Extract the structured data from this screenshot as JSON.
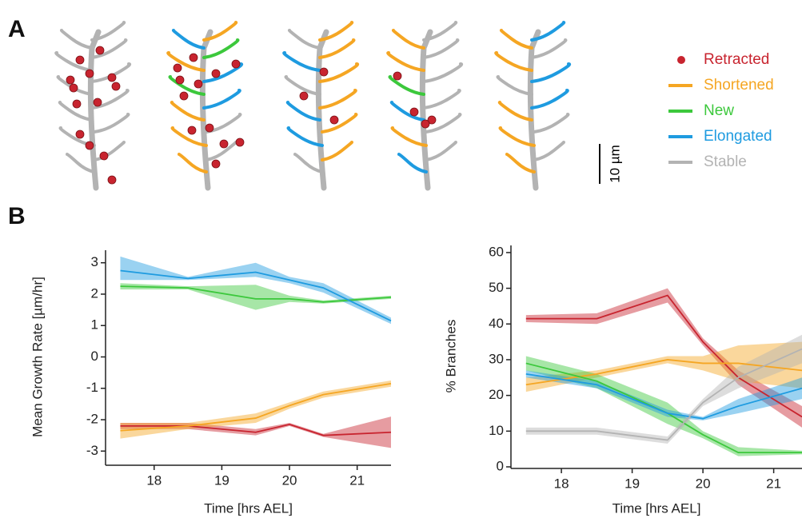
{
  "panel_labels": {
    "a": "A",
    "b": "B"
  },
  "scale_bar": "10 µm",
  "legend": {
    "markers": [
      "dot",
      "line",
      "line",
      "line",
      "line"
    ]
  },
  "chart_data": [
    {
      "type": "line",
      "ylabel": "Mean Growth Rate [µm/hr]",
      "xlabel": "Time [hrs AEL]",
      "x": [
        17.5,
        18.5,
        19.5,
        20,
        20.5,
        21.5
      ],
      "xlim": [
        17.4,
        21.5
      ],
      "xticks": [
        18,
        19,
        20,
        21
      ],
      "ylim": [
        -3.4,
        3.4
      ],
      "yticks": [
        -3,
        -2,
        -1,
        0,
        1,
        2,
        3
      ],
      "series": [
        {
          "name": "Retracted",
          "color": "#c8242f",
          "values": [
            -2.2,
            -2.2,
            -2.4,
            -2.15,
            -2.5,
            -2.4
          ],
          "lower": [
            -2.3,
            -2.3,
            -2.5,
            -2.2,
            -2.55,
            -2.9
          ],
          "upper": [
            -2.1,
            -2.1,
            -2.3,
            -2.1,
            -2.45,
            -1.9
          ]
        },
        {
          "name": "Shortened",
          "color": "#f5a623",
          "values": [
            -2.35,
            -2.2,
            -1.95,
            -1.55,
            -1.2,
            -0.85
          ],
          "lower": [
            -2.6,
            -2.3,
            -2.1,
            -1.65,
            -1.3,
            -0.95
          ],
          "upper": [
            -2.1,
            -2.1,
            -1.8,
            -1.45,
            -1.1,
            -0.75
          ]
        },
        {
          "name": "New",
          "color": "#3cc83c",
          "values": [
            2.25,
            2.2,
            1.85,
            1.85,
            1.75,
            1.9
          ],
          "lower": [
            2.15,
            2.15,
            1.5,
            1.75,
            1.7,
            1.85
          ],
          "upper": [
            2.35,
            2.25,
            2.3,
            1.95,
            1.8,
            1.95
          ]
        },
        {
          "name": "Elongated",
          "color": "#1e9be0",
          "values": [
            2.75,
            2.5,
            2.7,
            2.45,
            2.2,
            1.15
          ],
          "lower": [
            2.45,
            2.45,
            2.55,
            2.35,
            2.05,
            1.05
          ],
          "upper": [
            3.2,
            2.55,
            3.0,
            2.55,
            2.35,
            1.25
          ]
        }
      ]
    },
    {
      "type": "line",
      "ylabel": "% Branches",
      "xlabel": "Time [hrs AEL]",
      "x": [
        17.5,
        18.5,
        19.5,
        20,
        20.5,
        21.4
      ],
      "xlim": [
        17.4,
        21.4
      ],
      "xticks": [
        18,
        19,
        20,
        21
      ],
      "ylim": [
        0,
        62
      ],
      "yticks": [
        0,
        10,
        20,
        30,
        40,
        50,
        60
      ],
      "series": [
        {
          "name": "Retracted",
          "color": "#c8242f",
          "values": [
            41.5,
            41.5,
            48,
            35,
            25,
            14
          ],
          "lower": [
            40.5,
            40,
            46,
            34,
            23,
            11
          ],
          "upper": [
            42.5,
            43,
            50,
            36,
            27,
            17
          ]
        },
        {
          "name": "Shortened",
          "color": "#f5a623",
          "values": [
            23,
            26,
            30,
            29,
            29,
            27
          ],
          "lower": [
            21,
            25,
            29,
            27,
            24,
            22
          ],
          "upper": [
            25,
            27,
            31,
            31,
            34,
            35
          ]
        },
        {
          "name": "New",
          "color": "#3cc83c",
          "values": [
            29,
            24,
            15,
            9,
            4,
            4
          ],
          "lower": [
            27,
            22,
            12,
            8,
            3,
            3.5
          ],
          "upper": [
            31,
            26,
            18,
            10,
            5.5,
            4.5
          ]
        },
        {
          "name": "Elongated",
          "color": "#1e9be0",
          "values": [
            26,
            23,
            15,
            13.5,
            17,
            22
          ],
          "lower": [
            25,
            22,
            14,
            13,
            15,
            19
          ],
          "upper": [
            27,
            24,
            16,
            14,
            19,
            25
          ]
        },
        {
          "name": "Stable",
          "color": "#b3b3b3",
          "values": [
            10,
            10,
            7.5,
            18,
            25,
            33
          ],
          "lower": [
            9,
            9,
            6.5,
            17,
            22,
            29
          ],
          "upper": [
            11,
            11,
            8.5,
            19,
            28,
            37
          ]
        }
      ]
    }
  ]
}
